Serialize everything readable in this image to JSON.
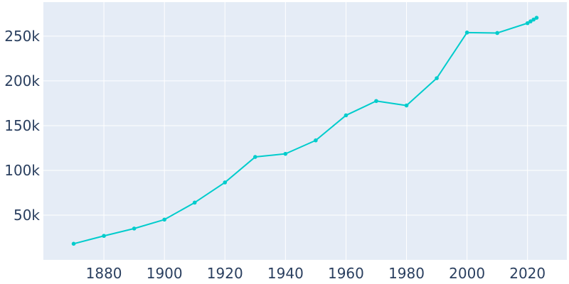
{
  "chart_data": {
    "type": "line",
    "title": "",
    "xlabel": "",
    "ylabel": "",
    "xlim": [
      1860,
      2033
    ],
    "ylim": [
      0,
      288000
    ],
    "x_ticks": [
      1880,
      1900,
      1920,
      1940,
      1960,
      1980,
      2000,
      2020
    ],
    "x_tick_labels": [
      "1880",
      "1900",
      "1920",
      "1940",
      "1960",
      "1980",
      "2000",
      "2020"
    ],
    "y_ticks": [
      50000,
      100000,
      150000,
      200000,
      250000
    ],
    "y_tick_labels": [
      "50k",
      "100k",
      "150k",
      "200k",
      "250k"
    ],
    "grid": true,
    "colors": {
      "line": "#00cccc",
      "plot_bg": "#e5ecf6",
      "grid": "#ffffff",
      "text": "#2a3f5f"
    },
    "series": [
      {
        "x": [
          1870,
          1880,
          1890,
          1900,
          1910,
          1920,
          1930,
          1940,
          1950,
          1960,
          1970,
          1980,
          1990,
          2000,
          2010,
          2020,
          2021,
          2022,
          2023
        ],
        "y": [
          18000,
          26800,
          35000,
          45000,
          64000,
          86500,
          115000,
          118500,
          133500,
          161500,
          177500,
          172500,
          203000,
          254000,
          253500,
          264500,
          266500,
          268500,
          270500
        ]
      }
    ]
  }
}
